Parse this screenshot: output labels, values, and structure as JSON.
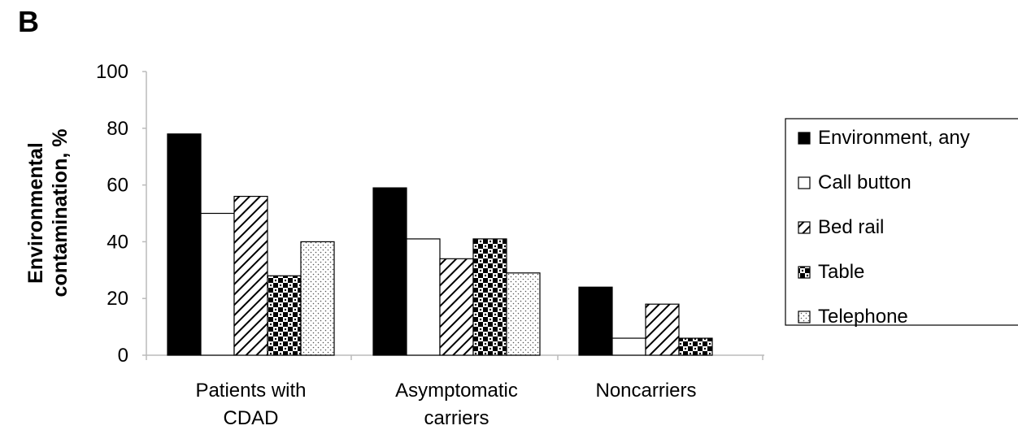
{
  "panel_label": "B",
  "chart_data": {
    "type": "bar",
    "ylabel_lines": [
      "Environmental",
      "contamination, %"
    ],
    "ylim": [
      0,
      100
    ],
    "yticks": [
      0,
      20,
      40,
      60,
      80,
      100
    ],
    "categories": [
      {
        "lines": [
          "Patients with",
          "CDAD"
        ]
      },
      {
        "lines": [
          "Asymptomatic",
          "carriers"
        ]
      },
      {
        "lines": [
          "Noncarriers"
        ]
      }
    ],
    "series": [
      {
        "name": "Environment, any",
        "pattern": "solid-black",
        "values": [
          78,
          59,
          24
        ]
      },
      {
        "name": "Call button",
        "pattern": "white",
        "values": [
          50,
          41,
          6
        ]
      },
      {
        "name": "Bed rail",
        "pattern": "diagonal-hatch",
        "values": [
          56,
          34,
          18
        ]
      },
      {
        "name": "Table",
        "pattern": "checker",
        "values": [
          28,
          41,
          6
        ]
      },
      {
        "name": "Telephone",
        "pattern": "dots",
        "values": [
          40,
          29,
          null
        ]
      }
    ],
    "legend_position": "right",
    "grid": false
  }
}
